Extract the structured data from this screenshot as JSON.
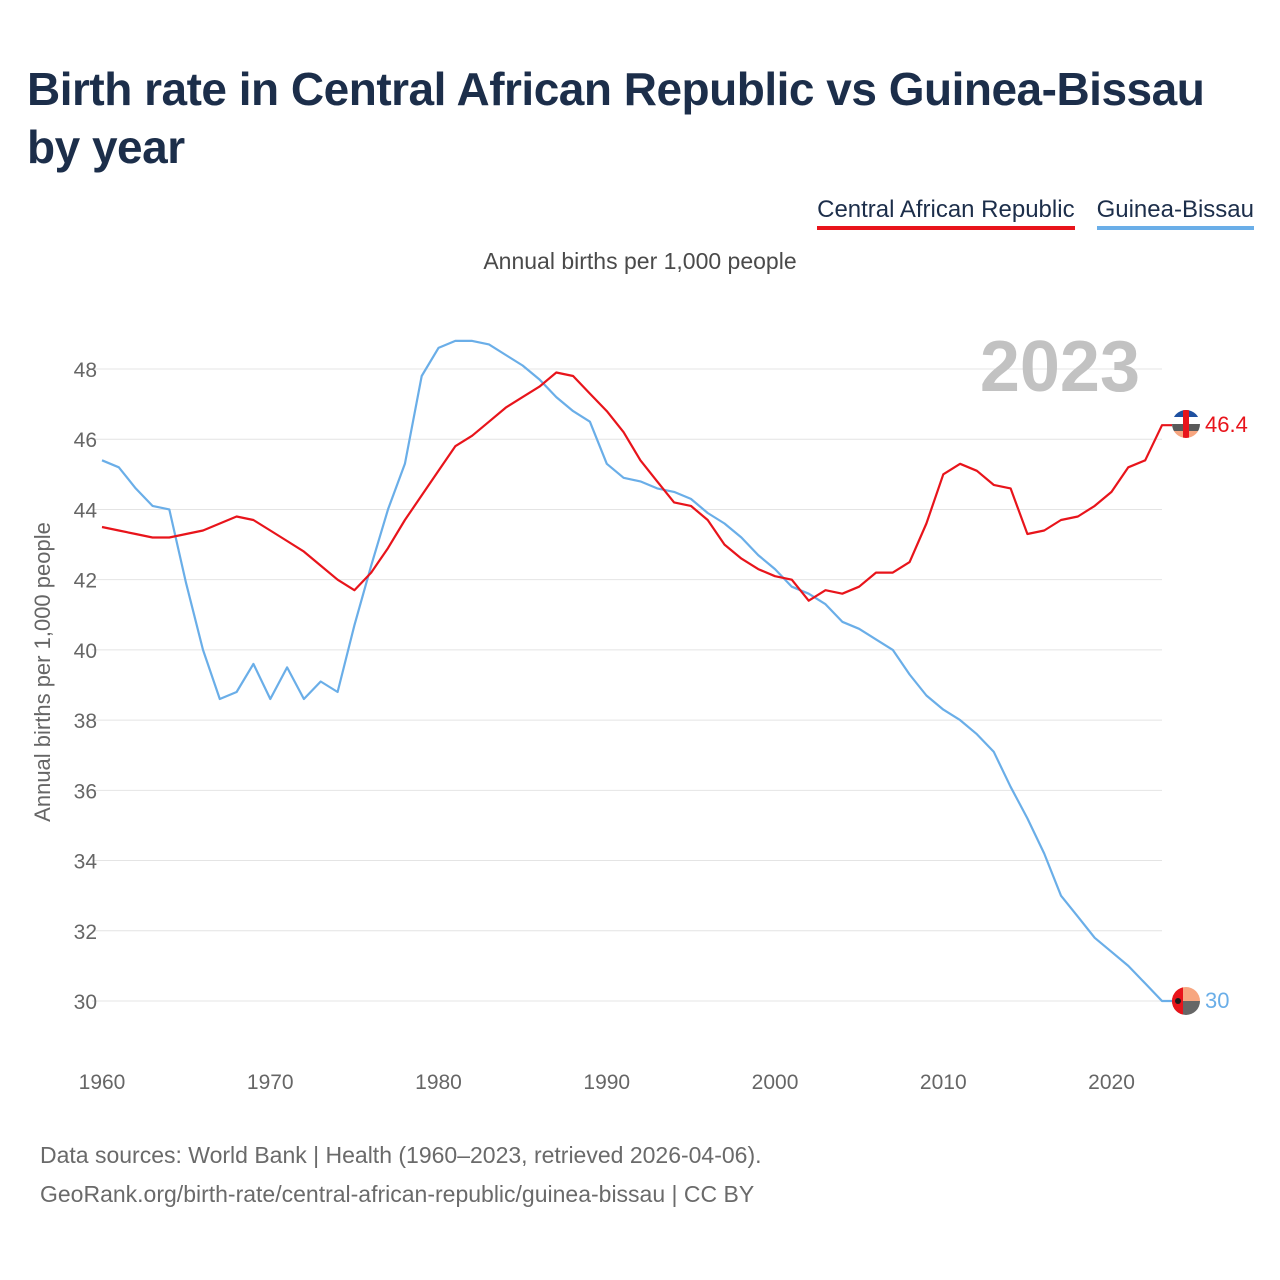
{
  "title": "Birth rate in Central African Republic vs Guinea-Bissau by year",
  "subtitle": "Annual births per 1,000 people",
  "footer": {
    "line1": "Data sources: World Bank | Health (1960–2023, retrieved 2026-04-06).",
    "line2": "GeoRank.org/birth-rate/central-african-republic/guinea-bissau | CC BY"
  },
  "chart_data": {
    "type": "line",
    "title": "Birth rate in Central African Republic vs Guinea-Bissau by year",
    "ylabel": "Annual births per 1,000 people",
    "xlabel": "",
    "xlim": [
      1960,
      2023
    ],
    "ylim": [
      29,
      49.5
    ],
    "yticks": [
      30,
      32,
      34,
      36,
      38,
      40,
      42,
      44,
      46,
      48
    ],
    "xticks": [
      1960,
      1970,
      1980,
      1990,
      2000,
      2010,
      2020
    ],
    "year_label": "2023",
    "legend_position": "top-right",
    "grid": true,
    "x": [
      1960,
      1961,
      1962,
      1963,
      1964,
      1965,
      1966,
      1967,
      1968,
      1969,
      1970,
      1971,
      1972,
      1973,
      1974,
      1975,
      1976,
      1977,
      1978,
      1979,
      1980,
      1981,
      1982,
      1983,
      1984,
      1985,
      1986,
      1987,
      1988,
      1989,
      1990,
      1991,
      1992,
      1993,
      1994,
      1995,
      1996,
      1997,
      1998,
      1999,
      2000,
      2001,
      2002,
      2003,
      2004,
      2005,
      2006,
      2007,
      2008,
      2009,
      2010,
      2011,
      2012,
      2013,
      2014,
      2015,
      2016,
      2017,
      2018,
      2019,
      2020,
      2021,
      2022,
      2023
    ],
    "series": [
      {
        "name": "Central African Republic",
        "color": "#e8141b",
        "end_label": "46.4",
        "values": [
          43.5,
          43.4,
          43.3,
          43.2,
          43.2,
          43.3,
          43.4,
          43.6,
          43.8,
          43.7,
          43.4,
          43.1,
          42.8,
          42.4,
          42.0,
          41.7,
          42.2,
          42.9,
          43.7,
          44.4,
          45.1,
          45.8,
          46.1,
          46.5,
          46.9,
          47.2,
          47.5,
          47.9,
          47.8,
          47.3,
          46.8,
          46.2,
          45.4,
          44.8,
          44.2,
          44.1,
          43.7,
          43.0,
          42.6,
          42.3,
          42.1,
          42.0,
          41.4,
          41.7,
          41.6,
          41.8,
          42.2,
          42.2,
          42.5,
          43.6,
          45.0,
          45.3,
          45.1,
          44.7,
          44.6,
          43.3,
          43.4,
          43.7,
          43.8,
          44.1,
          44.5,
          45.2,
          45.4,
          46.4
        ]
      },
      {
        "name": "Guinea-Bissau",
        "color": "#6aaee8",
        "end_label": "30",
        "values": [
          45.4,
          45.2,
          44.6,
          44.1,
          44.0,
          41.9,
          40.0,
          38.6,
          38.8,
          39.6,
          38.6,
          39.5,
          38.6,
          39.1,
          38.8,
          40.7,
          42.4,
          44.0,
          45.3,
          47.8,
          48.6,
          48.8,
          48.8,
          48.7,
          48.4,
          48.1,
          47.7,
          47.2,
          46.8,
          46.5,
          45.3,
          44.9,
          44.8,
          44.6,
          44.5,
          44.3,
          43.9,
          43.6,
          43.2,
          42.7,
          42.3,
          41.8,
          41.6,
          41.3,
          40.8,
          40.6,
          40.3,
          40.0,
          39.3,
          38.7,
          38.3,
          38.0,
          37.6,
          37.1,
          36.1,
          35.2,
          34.2,
          33.0,
          32.4,
          31.8,
          31.4,
          31.0,
          30.5,
          30.0
        ]
      }
    ]
  }
}
